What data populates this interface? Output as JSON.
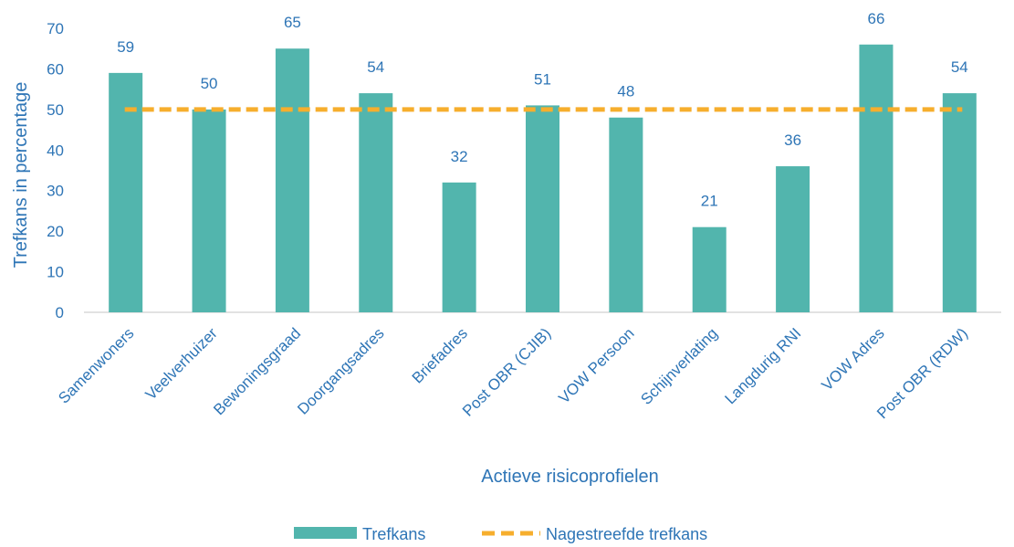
{
  "chart_data": {
    "type": "bar",
    "categories": [
      "Samenwoners",
      "Veelverhuizer",
      "Bewoningsgraad",
      "Doorgangsadres",
      "Briefadres",
      "Post OBR (CJIB)",
      "VOW Persoon",
      "Schijnverlating",
      "Langdurig RNI",
      "VOW Adres",
      "Post OBR (RDW)"
    ],
    "series": [
      {
        "name": "Trefkans",
        "values": [
          59,
          50,
          65,
          54,
          32,
          51,
          48,
          21,
          36,
          66,
          54
        ],
        "color": "#52b5ad"
      }
    ],
    "reference_line": {
      "name": "Nagestreefde trefkans",
      "value": 50,
      "color": "#f6ae2d",
      "style": "dashed"
    },
    "xlabel": "Actieve risicoprofielen",
    "ylabel": "Trefkans in percentage",
    "ylim": [
      0,
      70
    ],
    "yticks": [
      0,
      10,
      20,
      30,
      40,
      50,
      60,
      70
    ],
    "grid": false,
    "legend_position": "bottom",
    "text_color": "#2e75b6",
    "axis_line_color": "#d9d9d9"
  }
}
